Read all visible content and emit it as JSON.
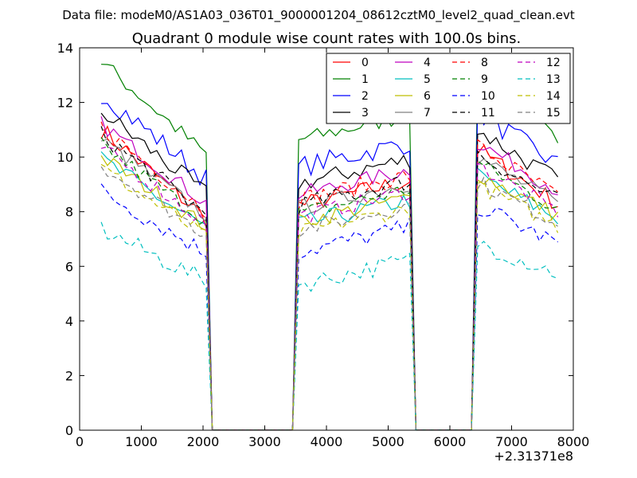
{
  "chart_data": {
    "type": "line",
    "suptitle": "Data file: modeM0/AS1A03_036T01_9000001204_08612cztM0_level2_quad_clean.evt",
    "title": "Quadrant 0 module wise count rates with 100.0s bins.",
    "xlabel": "",
    "ylabel": "",
    "x_offset_label": "+2.31371e8",
    "xlim": [
      0,
      8000
    ],
    "ylim": [
      0,
      14
    ],
    "xticks": [
      0,
      1000,
      2000,
      3000,
      4000,
      5000,
      6000,
      7000,
      8000
    ],
    "yticks": [
      0,
      2,
      4,
      6,
      8,
      10,
      12,
      14
    ],
    "grid": false,
    "legend": {
      "placement": "top-right",
      "columns": 4
    },
    "x": [
      350,
      450,
      550,
      650,
      750,
      850,
      950,
      1050,
      1150,
      1250,
      1350,
      1450,
      1550,
      1650,
      1750,
      1850,
      1950,
      2050,
      2150,
      2250,
      2350,
      2450,
      2550,
      2650,
      2750,
      2850,
      2950,
      3050,
      3150,
      3250,
      3350,
      3450,
      3550,
      3650,
      3750,
      3850,
      3950,
      4050,
      4150,
      4250,
      4350,
      4450,
      4550,
      4650,
      4750,
      4850,
      4950,
      5050,
      5150,
      5250,
      5350,
      5450,
      5550,
      5650,
      5750,
      5850,
      5950,
      6050,
      6150,
      6250,
      6350,
      6450,
      6550,
      6650,
      6750,
      6850,
      6950,
      7050,
      7150,
      7250,
      7350,
      7450,
      7550,
      7650,
      7750
    ],
    "segments": [
      [
        0,
        17
      ],
      [
        32,
        50
      ],
      [
        61,
        74
      ]
    ],
    "baseline_zero_on": [
      18,
      31,
      51,
      60
    ],
    "series": [
      {
        "name": "0",
        "color": "#ff0000",
        "dash": "solid",
        "level": 8.6,
        "jitter": 0.35,
        "drop": 2.6
      },
      {
        "name": "1",
        "color": "#008000",
        "dash": "solid",
        "level": 11.0,
        "jitter": 0.3,
        "drop": 2.7
      },
      {
        "name": "2",
        "color": "#0000ff",
        "dash": "solid",
        "level": 10.0,
        "jitter": 0.4,
        "drop": 2.5
      },
      {
        "name": "3",
        "color": "#000000",
        "dash": "solid",
        "level": 9.4,
        "jitter": 0.35,
        "drop": 2.4
      },
      {
        "name": "4",
        "color": "#bf00bf",
        "dash": "solid",
        "level": 9.0,
        "jitter": 0.3,
        "drop": 2.3
      },
      {
        "name": "5",
        "color": "#00bfbf",
        "dash": "solid",
        "level": 7.9,
        "jitter": 0.35,
        "drop": 2.0
      },
      {
        "name": "6",
        "color": "#bfbf00",
        "dash": "solid",
        "level": 8.0,
        "jitter": 0.3,
        "drop": 2.0
      },
      {
        "name": "7",
        "color": "#808080",
        "dash": "solid",
        "level": 8.5,
        "jitter": 0.3,
        "drop": 2.2
      },
      {
        "name": "8",
        "color": "#ff0000",
        "dash": "dashed",
        "level": 8.8,
        "jitter": 0.35,
        "drop": 2.4
      },
      {
        "name": "9",
        "color": "#008000",
        "dash": "dashed",
        "level": 8.3,
        "jitter": 0.3,
        "drop": 2.2
      },
      {
        "name": "10",
        "color": "#0000ff",
        "dash": "dashed",
        "level": 6.9,
        "jitter": 0.35,
        "drop": 1.8
      },
      {
        "name": "11",
        "color": "#000000",
        "dash": "dashed",
        "level": 8.6,
        "jitter": 0.35,
        "drop": 2.3
      },
      {
        "name": "12",
        "color": "#bf00bf",
        "dash": "dashed",
        "level": 8.2,
        "jitter": 0.3,
        "drop": 2.2
      },
      {
        "name": "13",
        "color": "#00bfbf",
        "dash": "dashed",
        "level": 5.7,
        "jitter": 0.35,
        "drop": 1.5
      },
      {
        "name": "14",
        "color": "#bfbf00",
        "dash": "dashed",
        "level": 7.6,
        "jitter": 0.3,
        "drop": 2.0
      },
      {
        "name": "15",
        "color": "#808080",
        "dash": "dashed",
        "level": 7.7,
        "jitter": 0.3,
        "drop": 2.0
      }
    ]
  }
}
